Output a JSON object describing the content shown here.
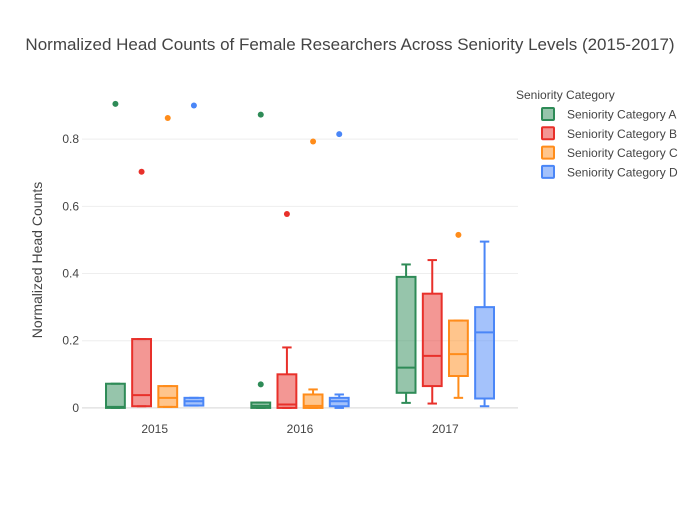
{
  "chart_data": {
    "type": "box",
    "title": "Normalized Head Counts of Female Researchers Across Seniority Levels (2015-2017)",
    "xlabel": "",
    "ylabel": "Normalized Head Counts",
    "categories": [
      "2015",
      "2016",
      "2017"
    ],
    "yticks": [
      "0",
      "0.2",
      "0.4",
      "0.6",
      "0.8"
    ],
    "ylim": [
      -0.03,
      0.97
    ],
    "grid": true,
    "legend_title": "Seniority Category",
    "legend_position": "right",
    "series": [
      {
        "name": "Seniority Category A",
        "color": "#2e8b57",
        "boxes": [
          {
            "category": "2015",
            "q1": 0.0,
            "median": 0.003,
            "q3": 0.072,
            "whisker_low": 0.0,
            "whisker_high": 0.072,
            "outliers": [
              0.905
            ]
          },
          {
            "category": "2016",
            "q1": 0.0,
            "median": 0.006,
            "q3": 0.016,
            "whisker_low": 0.0,
            "whisker_high": 0.016,
            "outliers": [
              0.07,
              0.873
            ]
          },
          {
            "category": "2017",
            "q1": 0.045,
            "median": 0.12,
            "q3": 0.39,
            "whisker_low": 0.015,
            "whisker_high": 0.427,
            "outliers": []
          }
        ]
      },
      {
        "name": "Seniority Category B",
        "color": "#e8302a",
        "boxes": [
          {
            "category": "2015",
            "q1": 0.005,
            "median": 0.038,
            "q3": 0.205,
            "whisker_low": 0.005,
            "whisker_high": 0.205,
            "outliers": [
              0.703
            ]
          },
          {
            "category": "2016",
            "q1": 0.0,
            "median": 0.01,
            "q3": 0.1,
            "whisker_low": 0.0,
            "whisker_high": 0.18,
            "outliers": [
              0.577
            ]
          },
          {
            "category": "2017",
            "q1": 0.065,
            "median": 0.155,
            "q3": 0.34,
            "whisker_low": 0.013,
            "whisker_high": 0.44,
            "outliers": []
          }
        ]
      },
      {
        "name": "Seniority Category C",
        "color": "#ff8c1a",
        "boxes": [
          {
            "category": "2015",
            "q1": 0.003,
            "median": 0.03,
            "q3": 0.065,
            "whisker_low": 0.003,
            "whisker_high": 0.065,
            "outliers": [
              0.863
            ]
          },
          {
            "category": "2016",
            "q1": 0.0,
            "median": 0.006,
            "q3": 0.04,
            "whisker_low": 0.0,
            "whisker_high": 0.055,
            "outliers": [
              0.793
            ]
          },
          {
            "category": "2017",
            "q1": 0.095,
            "median": 0.16,
            "q3": 0.26,
            "whisker_low": 0.03,
            "whisker_high": 0.26,
            "outliers": [
              0.515
            ]
          }
        ]
      },
      {
        "name": "Seniority Category D",
        "color": "#4a86f7",
        "boxes": [
          {
            "category": "2015",
            "q1": 0.007,
            "median": 0.02,
            "q3": 0.03,
            "whisker_low": 0.007,
            "whisker_high": 0.03,
            "outliers": [
              0.9
            ]
          },
          {
            "category": "2016",
            "q1": 0.005,
            "median": 0.02,
            "q3": 0.03,
            "whisker_low": 0.0,
            "whisker_high": 0.04,
            "outliers": [
              0.815
            ]
          },
          {
            "category": "2017",
            "q1": 0.028,
            "median": 0.225,
            "q3": 0.3,
            "whisker_low": 0.005,
            "whisker_high": 0.495,
            "outliers": []
          }
        ]
      }
    ]
  }
}
